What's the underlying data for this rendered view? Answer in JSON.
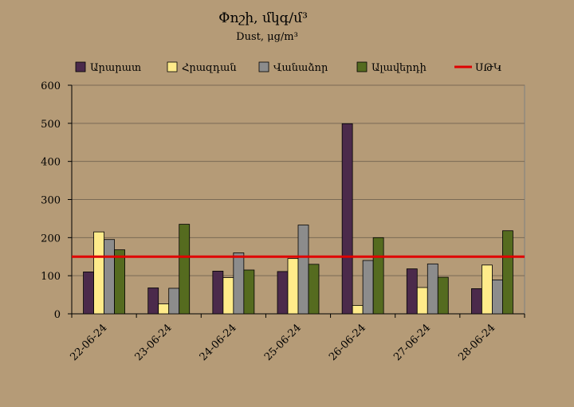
{
  "chart_data": {
    "type": "bar",
    "title": "Փոշի, մկգ/մ³",
    "subtitle": "Dust, μg/m³",
    "xlabel": "",
    "ylabel": "",
    "ylim": [
      0,
      600
    ],
    "yticks": [
      0,
      100,
      200,
      300,
      400,
      500,
      600
    ],
    "grid": true,
    "legend_position": "top",
    "categories": [
      "22-06-24",
      "23-06-24",
      "24-06-24",
      "25-06-24",
      "26-06-24",
      "27-06-24",
      "28-06-24"
    ],
    "series": [
      {
        "name": "Արարատ",
        "color": "#4b2a4b",
        "values": [
          110,
          68,
          112,
          111,
          499,
          118,
          66
        ]
      },
      {
        "name": "Հրազդան",
        "color": "#ffeb8a",
        "values": [
          215,
          26,
          95,
          145,
          22,
          69,
          128
        ]
      },
      {
        "name": "Վանաձոր",
        "color": "#8c8c8c",
        "values": [
          195,
          67,
          160,
          233,
          140,
          131,
          89
        ]
      },
      {
        "name": "Ալավերդի",
        "color": "#556b1f",
        "values": [
          168,
          235,
          115,
          130,
          200,
          96,
          218
        ]
      }
    ],
    "reference_line": {
      "name": "ՍԹԿ",
      "value": 150,
      "color": "#e00000"
    }
  }
}
